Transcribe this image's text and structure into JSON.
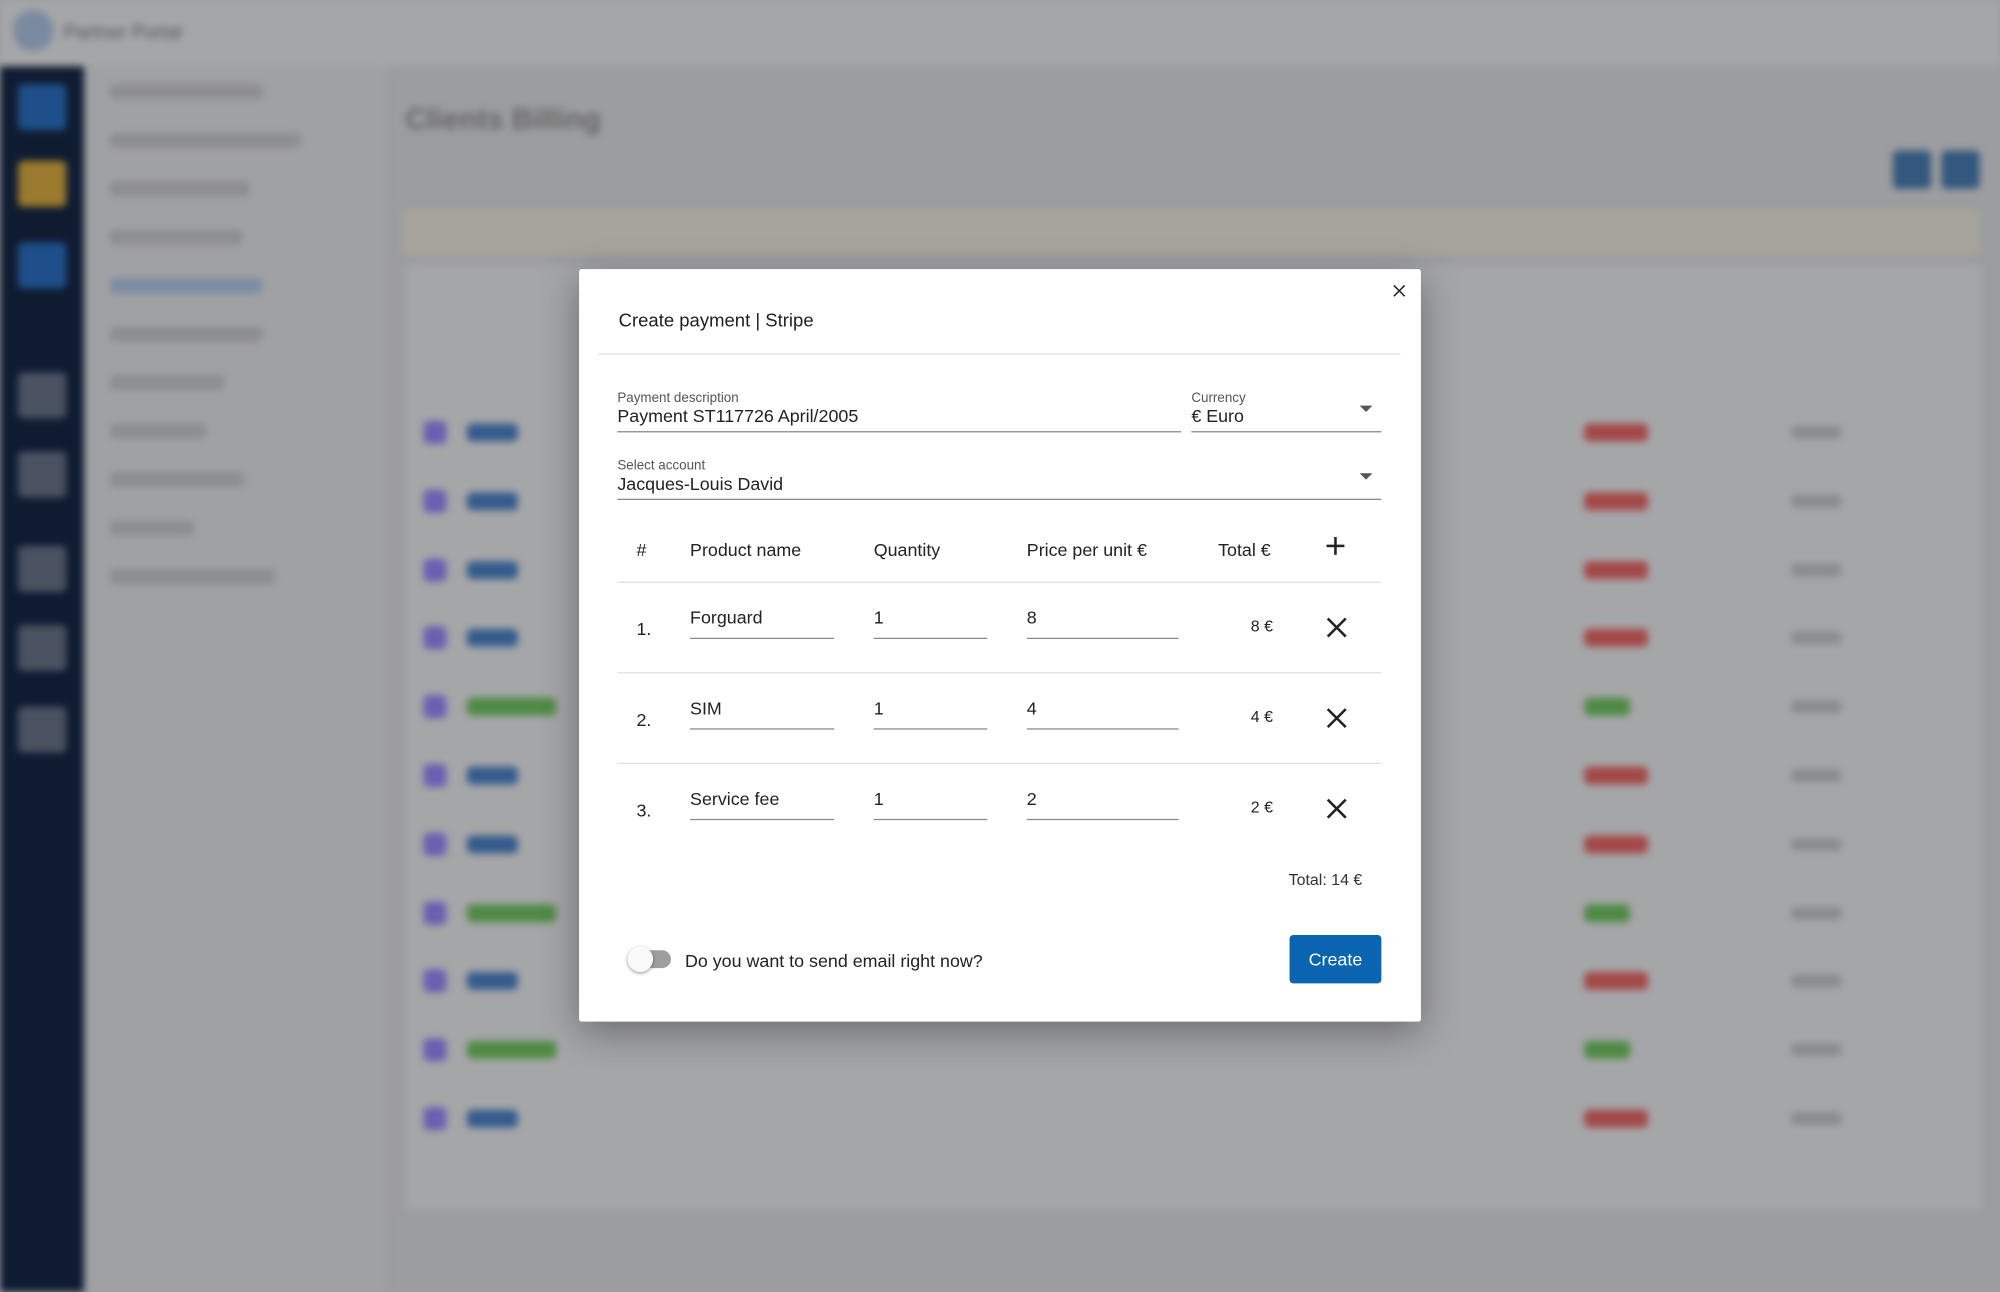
{
  "app": {
    "name": "Partner Portal",
    "page_title": "Clients Billing"
  },
  "modal": {
    "title": "Create payment | Stripe",
    "fields": {
      "description": {
        "label": "Payment description",
        "value": "Payment ST117726 April/2005"
      },
      "currency": {
        "label": "Currency",
        "value": "€ Euro"
      },
      "account": {
        "label": "Select account",
        "value": "Jacques-Louis David"
      }
    },
    "table": {
      "headers": [
        "#",
        "Product name",
        "Quantity",
        "Price per unit €",
        "Total €"
      ],
      "rows": [
        [
          "1.",
          "Forguard",
          "1",
          "8",
          "8 €"
        ],
        [
          "2.",
          "SIM",
          "1",
          "4",
          "4 €"
        ],
        [
          "3.",
          "Service fee",
          "1",
          "2",
          "2 €"
        ]
      ]
    },
    "total": "Total: 14 €",
    "email_toggle": "Do you want to send email right now?",
    "create_button": "Create"
  }
}
